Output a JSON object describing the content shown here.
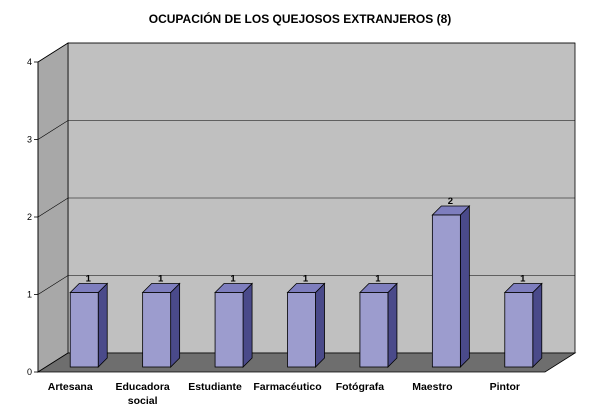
{
  "chart_data": {
    "type": "bar",
    "title": "OCUPACIÓN DE LOS QUEJOSOS EXTRANJEROS (8)",
    "categories": [
      [
        "Artesana"
      ],
      [
        "Educadora",
        "social"
      ],
      [
        "Estudiante"
      ],
      [
        "Farmacéutico"
      ],
      [
        "Fotógrafa"
      ],
      [
        "Maestro"
      ],
      [
        "Pintor"
      ]
    ],
    "values": [
      1,
      1,
      1,
      1,
      1,
      2,
      1
    ],
    "data_labels": [
      "1",
      "1",
      "1",
      "1",
      "1",
      "2",
      "1"
    ],
    "yticks": [
      "0",
      "1",
      "2",
      "3",
      "4"
    ],
    "ylim": [
      0,
      4
    ],
    "grid": true,
    "legend": "none",
    "style": "3d-column",
    "colors": {
      "bar_front": "#9C9CCE",
      "bar_side": "#4A4A8A",
      "bar_top": "#7E7EBE",
      "back_wall": "#C0C0C0",
      "side_wall": "#A8A8A8",
      "floor": "#6E6E6E",
      "gridline": "#000000"
    }
  }
}
